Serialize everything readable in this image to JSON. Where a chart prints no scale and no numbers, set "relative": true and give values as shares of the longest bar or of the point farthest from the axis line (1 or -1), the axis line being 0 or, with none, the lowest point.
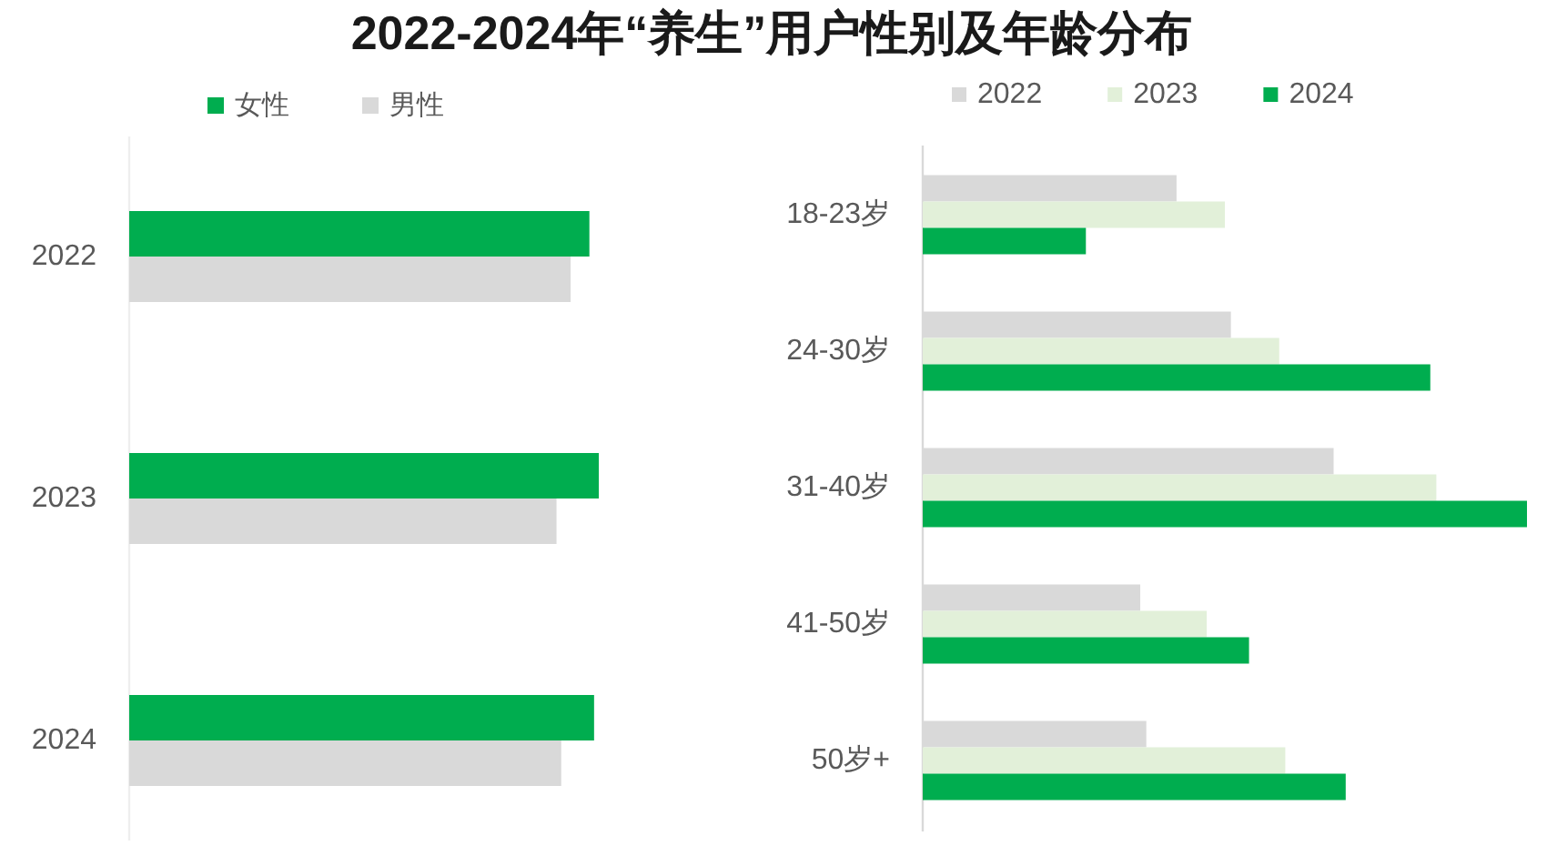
{
  "chart_data": [
    {
      "type": "bar",
      "title": "2022-2024年“养生”用户性别及年龄分布",
      "orientation": "horizontal",
      "relative": true,
      "legend": "top",
      "categories": [
        "2022",
        "2023",
        "2024"
      ],
      "series": [
        {
          "name": "女性",
          "color": "#00ad4f",
          "values": [
            0.98,
            1,
            0.99
          ]
        },
        {
          "name": "男性",
          "color": "#d9d9d9",
          "values": [
            0.94,
            0.91,
            0.92
          ]
        }
      ]
    },
    {
      "type": "bar",
      "orientation": "horizontal",
      "relative": true,
      "legend": "top",
      "categories": [
        "18-23岁",
        "24-30岁",
        "31-40岁",
        "41-50岁",
        "50岁+"
      ],
      "series": [
        {
          "name": "2022",
          "color": "#d9d9d9",
          "values": [
            0.42,
            0.51,
            0.68,
            0.36,
            0.37
          ]
        },
        {
          "name": "2023",
          "color": "#e2f0d9",
          "values": [
            0.5,
            0.59,
            0.85,
            0.47,
            0.6
          ]
        },
        {
          "name": "2024",
          "color": "#00ad4f",
          "values": [
            0.27,
            0.84,
            1,
            0.54,
            0.7
          ]
        }
      ]
    }
  ]
}
